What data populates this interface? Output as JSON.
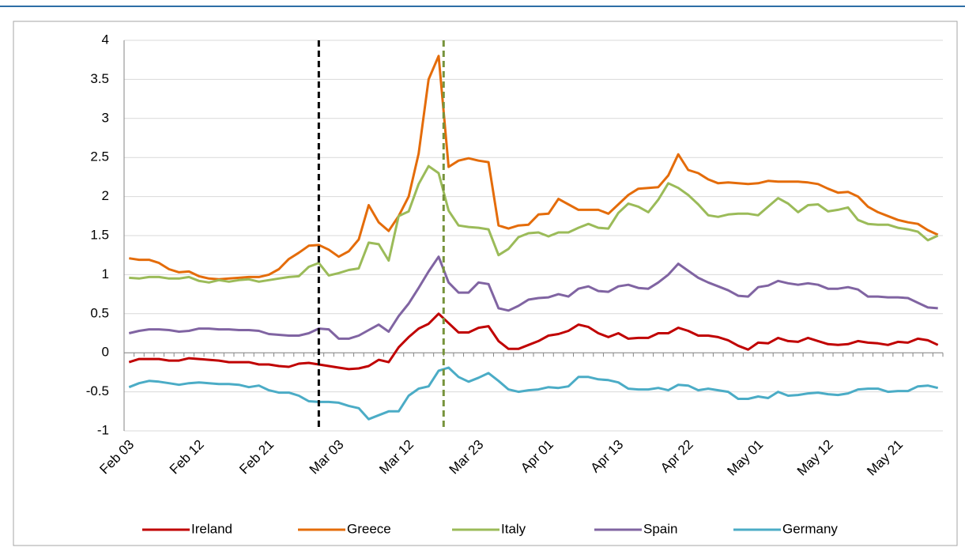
{
  "chart_data": {
    "type": "line",
    "categories": [
      "Feb 03",
      null,
      null,
      null,
      null,
      null,
      null,
      "Feb 12",
      null,
      null,
      null,
      null,
      null,
      null,
      "Feb 21",
      null,
      null,
      null,
      null,
      null,
      null,
      "Mar 03",
      null,
      null,
      null,
      null,
      null,
      null,
      "Mar 12",
      null,
      null,
      null,
      null,
      null,
      null,
      "Mar 23",
      null,
      null,
      null,
      null,
      null,
      null,
      "Apr 01",
      null,
      null,
      null,
      null,
      null,
      null,
      "Apr 13",
      null,
      null,
      null,
      null,
      null,
      null,
      "Apr 22",
      null,
      null,
      null,
      null,
      null,
      null,
      "May 01",
      null,
      null,
      null,
      null,
      null,
      null,
      "May 12",
      null,
      null,
      null,
      null,
      null,
      null,
      "May 21",
      null,
      null,
      null,
      null
    ],
    "series": [
      {
        "name": "Ireland",
        "color": "#c00000",
        "values": [
          -0.12,
          -0.08,
          -0.08,
          -0.08,
          -0.1,
          -0.1,
          -0.07,
          -0.08,
          -0.09,
          -0.1,
          -0.12,
          -0.12,
          -0.12,
          -0.15,
          -0.15,
          -0.17,
          -0.18,
          -0.14,
          -0.13,
          -0.15,
          -0.17,
          -0.19,
          -0.21,
          -0.2,
          -0.17,
          -0.09,
          -0.12,
          0.07,
          0.2,
          0.31,
          0.37,
          0.5,
          0.38,
          0.26,
          0.26,
          0.32,
          0.34,
          0.15,
          0.05,
          0.05,
          0.1,
          0.15,
          0.22,
          0.24,
          0.28,
          0.36,
          0.33,
          0.25,
          0.2,
          0.25,
          0.18,
          0.19,
          0.19,
          0.25,
          0.25,
          0.32,
          0.28,
          0.22,
          0.22,
          0.2,
          0.16,
          0.09,
          0.04,
          0.13,
          0.12,
          0.19,
          0.15,
          0.14,
          0.19,
          0.15,
          0.11,
          0.1,
          0.11,
          0.15,
          0.13,
          0.12,
          0.1,
          0.14,
          0.13,
          0.18,
          0.16,
          0.1
        ]
      },
      {
        "name": "Greece",
        "color": "#e46c0a",
        "values": [
          1.21,
          1.19,
          1.19,
          1.15,
          1.07,
          1.03,
          1.04,
          0.98,
          0.95,
          0.94,
          0.95,
          0.96,
          0.97,
          0.97,
          1.0,
          1.07,
          1.2,
          1.28,
          1.37,
          1.38,
          1.32,
          1.23,
          1.3,
          1.45,
          1.89,
          1.67,
          1.56,
          1.75,
          2.0,
          2.55,
          3.5,
          3.8,
          2.38,
          2.46,
          2.49,
          2.46,
          2.44,
          1.63,
          1.59,
          1.63,
          1.64,
          1.77,
          1.78,
          1.97,
          1.9,
          1.83,
          1.83,
          1.83,
          1.78,
          1.9,
          2.02,
          2.1,
          2.11,
          2.12,
          2.27,
          2.54,
          2.34,
          2.3,
          2.22,
          2.17,
          2.18,
          2.17,
          2.16,
          2.17,
          2.2,
          2.19,
          2.19,
          2.19,
          2.18,
          2.16,
          2.1,
          2.05,
          2.06,
          2.0,
          1.87,
          1.8,
          1.75,
          1.7,
          1.67,
          1.65,
          1.57,
          1.51
        ]
      },
      {
        "name": "Italy",
        "color": "#9bbb59",
        "values": [
          0.96,
          0.95,
          0.97,
          0.97,
          0.95,
          0.95,
          0.97,
          0.92,
          0.9,
          0.93,
          0.91,
          0.93,
          0.94,
          0.91,
          0.93,
          0.95,
          0.97,
          0.98,
          1.1,
          1.15,
          0.99,
          1.02,
          1.06,
          1.08,
          1.41,
          1.39,
          1.18,
          1.75,
          1.81,
          2.16,
          2.39,
          2.3,
          1.82,
          1.63,
          1.61,
          1.6,
          1.58,
          1.25,
          1.33,
          1.48,
          1.53,
          1.54,
          1.49,
          1.54,
          1.54,
          1.6,
          1.65,
          1.6,
          1.59,
          1.79,
          1.91,
          1.87,
          1.8,
          1.96,
          2.17,
          2.11,
          2.02,
          1.9,
          1.76,
          1.74,
          1.77,
          1.78,
          1.78,
          1.76,
          1.87,
          1.98,
          1.91,
          1.8,
          1.89,
          1.9,
          1.81,
          1.83,
          1.86,
          1.7,
          1.65,
          1.64,
          1.64,
          1.6,
          1.58,
          1.55,
          1.44,
          1.5
        ]
      },
      {
        "name": "Spain",
        "color": "#8064a2",
        "values": [
          0.25,
          0.28,
          0.3,
          0.3,
          0.29,
          0.27,
          0.28,
          0.31,
          0.31,
          0.3,
          0.3,
          0.29,
          0.29,
          0.28,
          0.24,
          0.23,
          0.22,
          0.22,
          0.25,
          0.31,
          0.3,
          0.18,
          0.18,
          0.22,
          0.29,
          0.36,
          0.27,
          0.47,
          0.63,
          0.83,
          1.04,
          1.23,
          0.9,
          0.77,
          0.77,
          0.9,
          0.88,
          0.57,
          0.54,
          0.6,
          0.68,
          0.7,
          0.71,
          0.75,
          0.72,
          0.82,
          0.85,
          0.79,
          0.78,
          0.85,
          0.87,
          0.83,
          0.82,
          0.9,
          1.0,
          1.14,
          1.05,
          0.96,
          0.9,
          0.85,
          0.8,
          0.73,
          0.72,
          0.84,
          0.86,
          0.92,
          0.89,
          0.87,
          0.89,
          0.87,
          0.82,
          0.82,
          0.84,
          0.81,
          0.72,
          0.72,
          0.71,
          0.71,
          0.7,
          0.64,
          0.58,
          0.57
        ]
      },
      {
        "name": "Germany",
        "color": "#4bacc6",
        "values": [
          -0.44,
          -0.39,
          -0.36,
          -0.37,
          -0.39,
          -0.41,
          -0.39,
          -0.38,
          -0.39,
          -0.4,
          -0.4,
          -0.41,
          -0.44,
          -0.42,
          -0.48,
          -0.51,
          -0.51,
          -0.55,
          -0.62,
          -0.63,
          -0.63,
          -0.64,
          -0.68,
          -0.71,
          -0.85,
          -0.8,
          -0.75,
          -0.75,
          -0.55,
          -0.46,
          -0.43,
          -0.23,
          -0.19,
          -0.31,
          -0.37,
          -0.32,
          -0.26,
          -0.36,
          -0.47,
          -0.5,
          -0.48,
          -0.47,
          -0.44,
          -0.45,
          -0.43,
          -0.31,
          -0.31,
          -0.34,
          -0.35,
          -0.38,
          -0.46,
          -0.47,
          -0.47,
          -0.45,
          -0.48,
          -0.41,
          -0.42,
          -0.48,
          -0.46,
          -0.48,
          -0.5,
          -0.59,
          -0.59,
          -0.56,
          -0.58,
          -0.5,
          -0.55,
          -0.54,
          -0.52,
          -0.51,
          -0.53,
          -0.54,
          -0.52,
          -0.47,
          -0.46,
          -0.46,
          -0.5,
          -0.49,
          -0.49,
          -0.43,
          -0.42,
          -0.45
        ]
      }
    ],
    "ylim": [
      -1,
      4
    ],
    "yticks": [
      4,
      3.5,
      3,
      2.5,
      2,
      1.5,
      1,
      0.5,
      0,
      -0.5,
      -1
    ],
    "grid": true,
    "vlines": [
      {
        "at": 19,
        "color": "#000000"
      },
      {
        "at": 31.5,
        "color": "#77933c"
      }
    ],
    "legend": "bottom"
  }
}
